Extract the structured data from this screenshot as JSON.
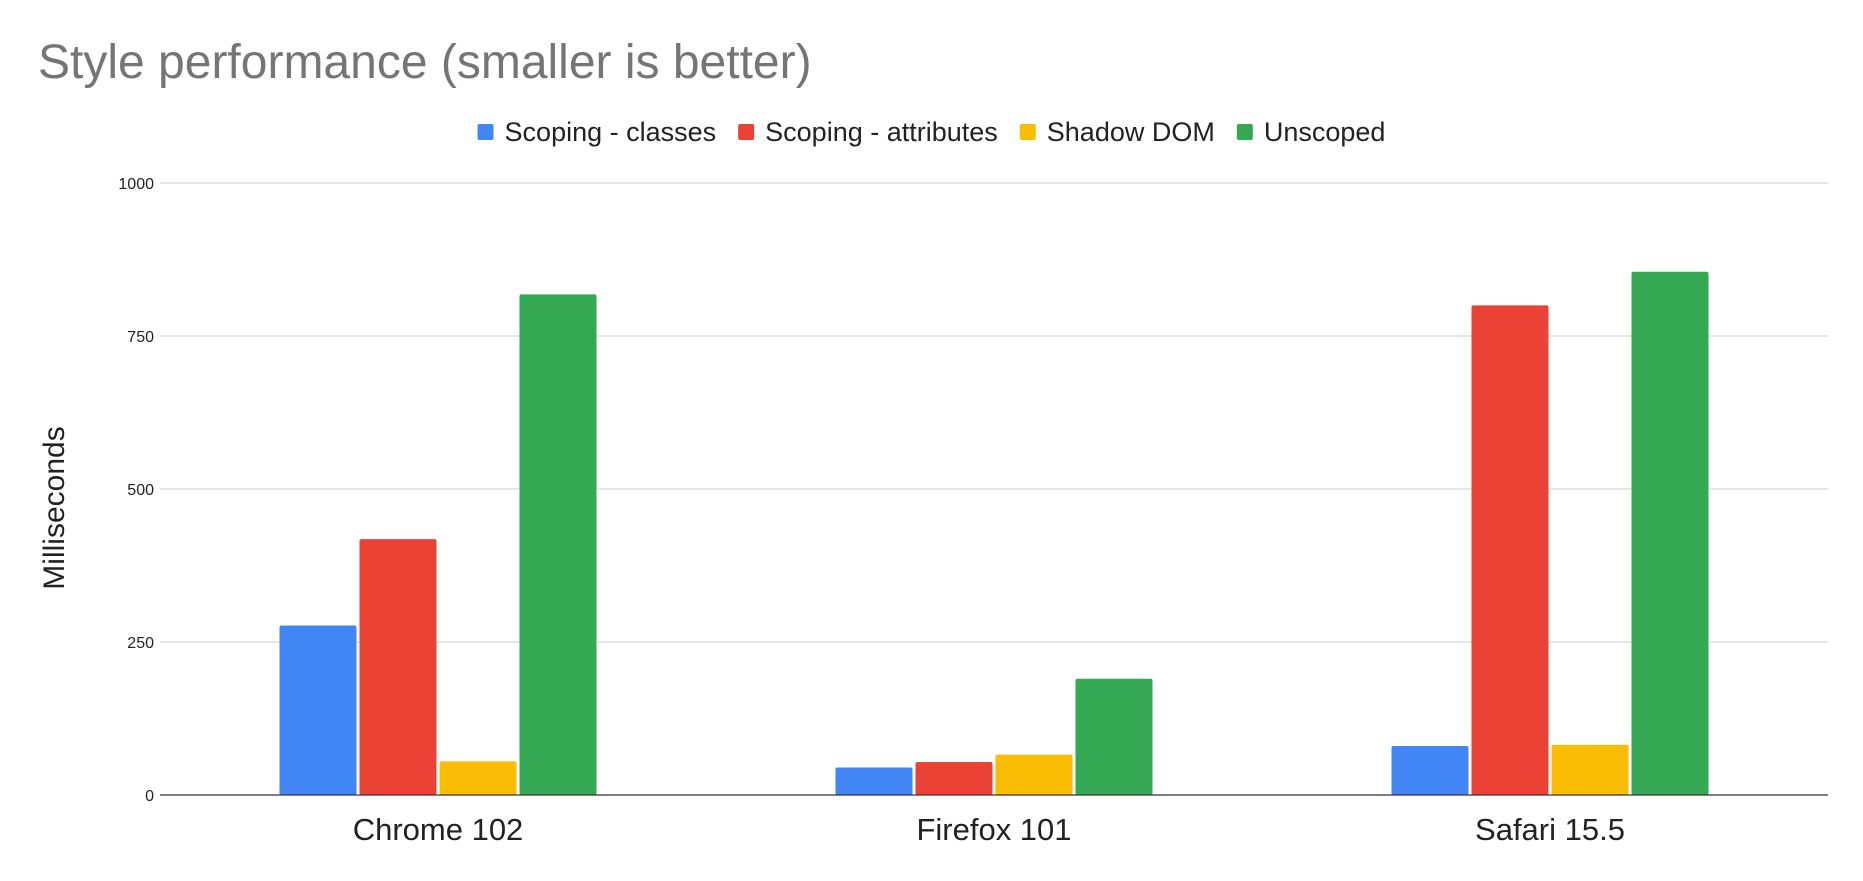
{
  "chart_data": {
    "type": "bar",
    "title": "Style performance (smaller is better)",
    "xlabel": "",
    "ylabel": "Milliseconds",
    "categories": [
      "Chrome 102",
      "Firefox 101",
      "Safari 15.5"
    ],
    "series": [
      {
        "name": "Scoping - classes",
        "color": "#4285F4",
        "values": [
          277,
          45,
          80
        ]
      },
      {
        "name": "Scoping - attributes",
        "color": "#EA4335",
        "values": [
          418,
          54,
          800
        ]
      },
      {
        "name": "Shadow DOM",
        "color": "#FBBC04",
        "values": [
          55,
          66,
          82
        ]
      },
      {
        "name": "Unscoped",
        "color": "#34A853",
        "values": [
          818,
          190,
          855
        ]
      }
    ],
    "ylim": [
      0,
      1000
    ],
    "yticks": [
      0,
      250,
      500,
      750,
      1000
    ],
    "grid": true,
    "legend_position": "top"
  }
}
